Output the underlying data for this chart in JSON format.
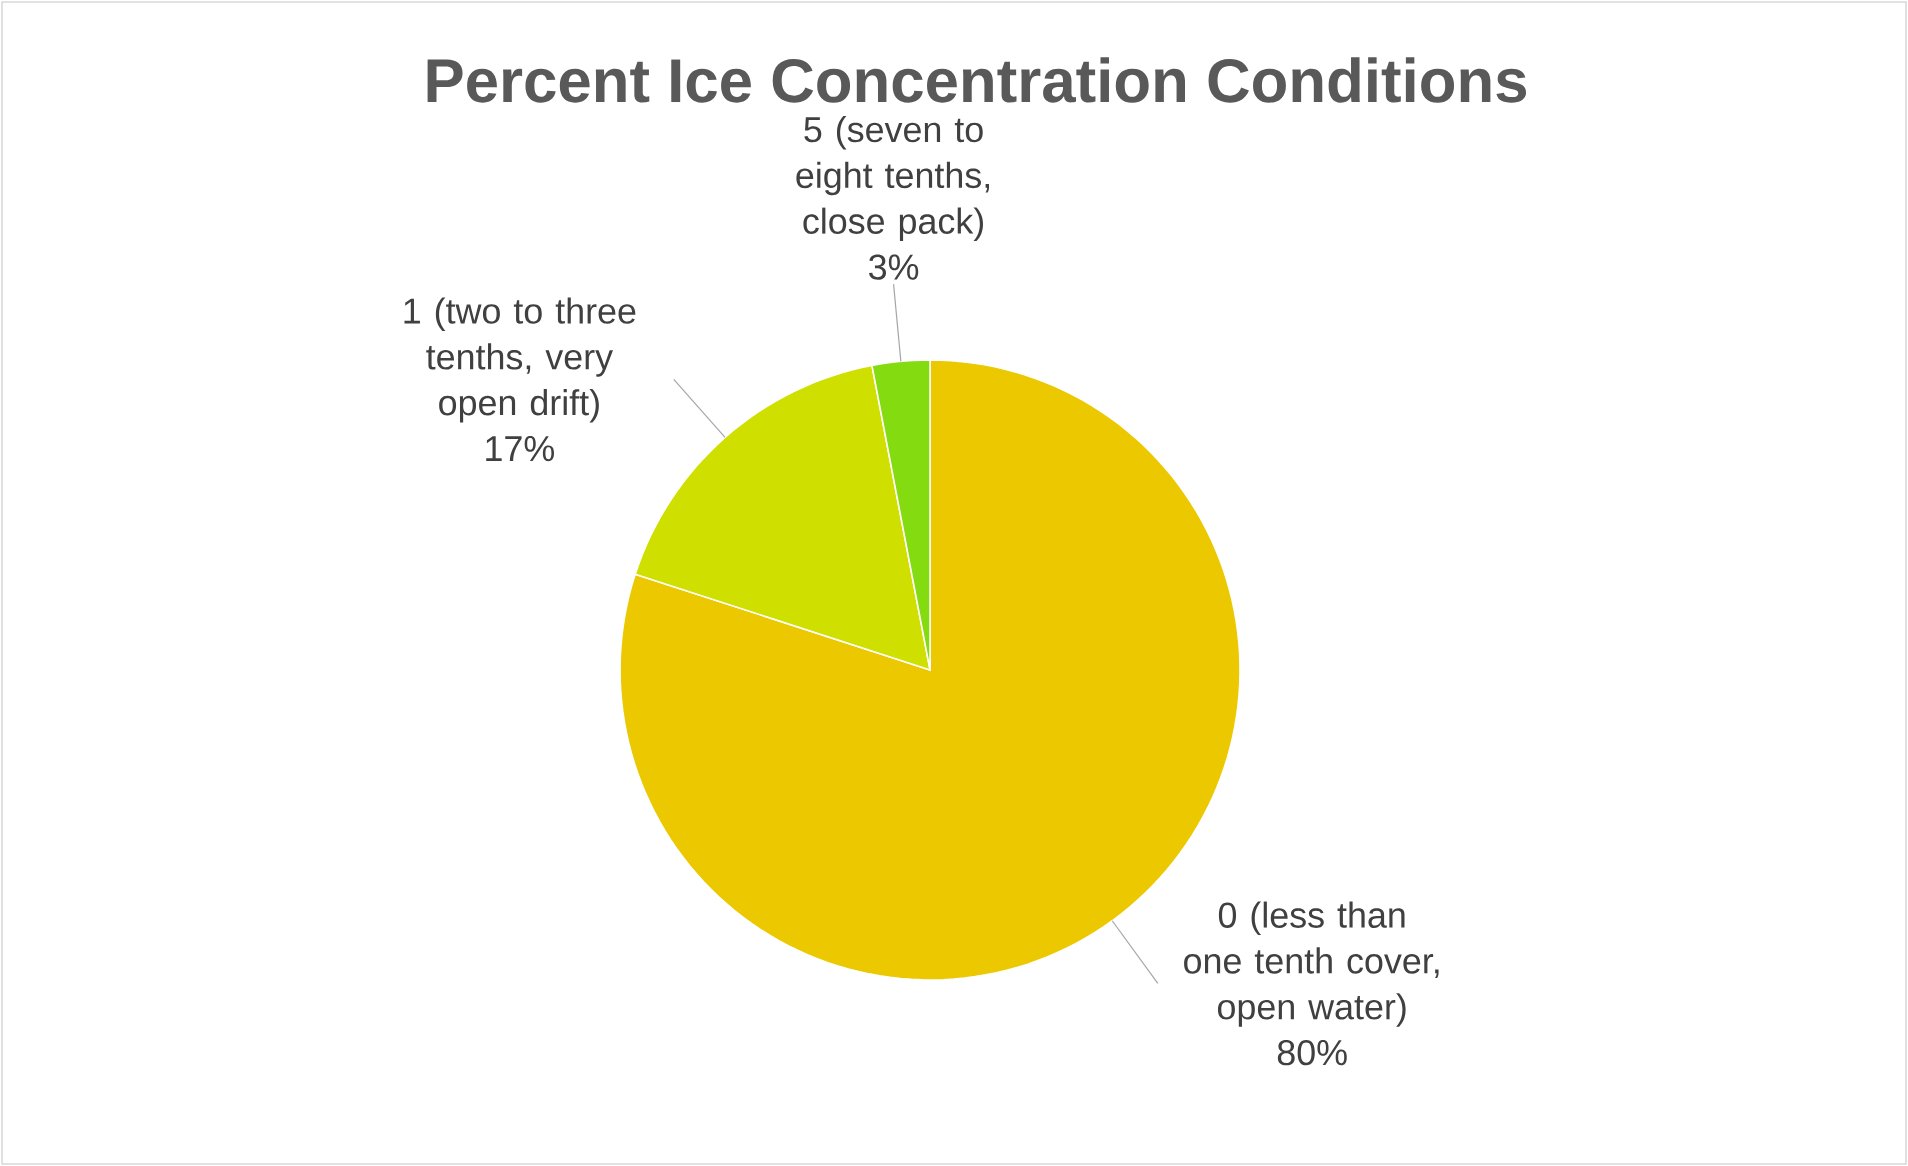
{
  "chart_data": {
    "type": "pie",
    "title": "Percent Ice Concentration Conditions",
    "categories": [
      "0 (less than one tenth cover, open water)",
      "1 (two to three tenths, very open drift)",
      "5 (seven to eight tenths, close pack)"
    ],
    "values": [
      80,
      17,
      3
    ],
    "value_labels": [
      "80%",
      "17%",
      "3%"
    ],
    "colors": [
      "#ecc800",
      "#cfe000",
      "#84dc10"
    ]
  }
}
